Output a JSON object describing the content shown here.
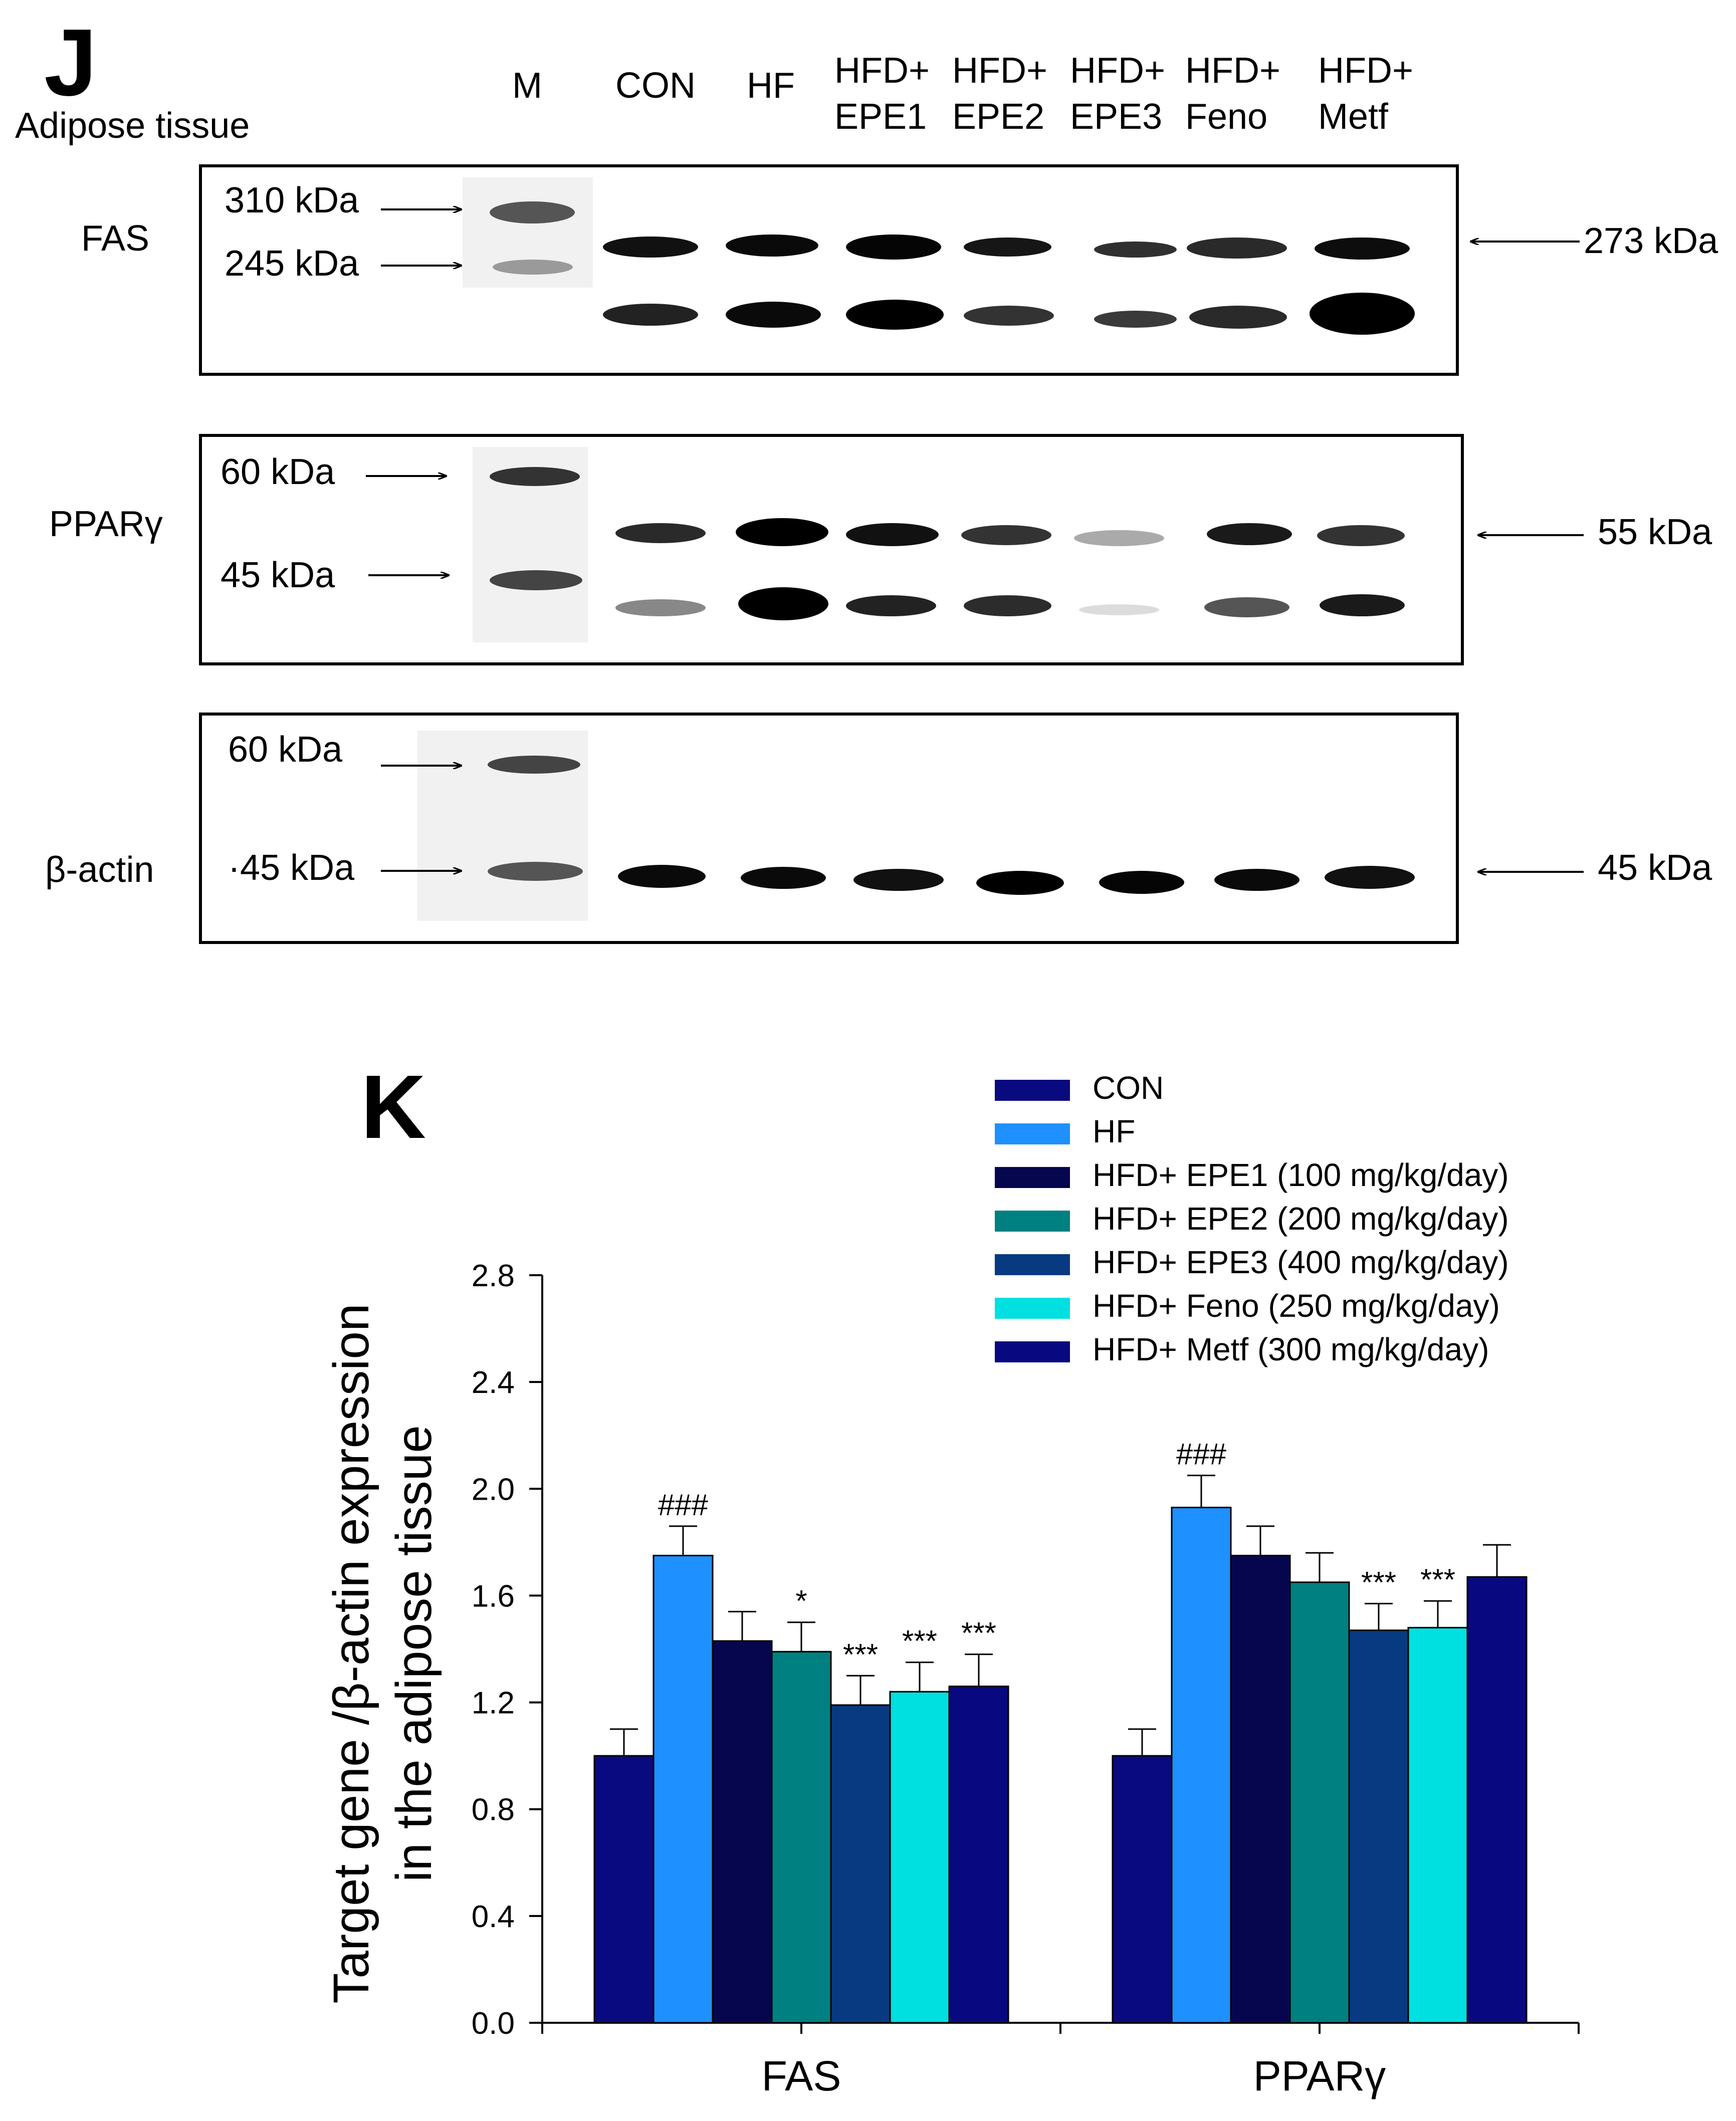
{
  "panel_j": {
    "letter": "J",
    "tissue": "Adipose tissue",
    "lanes": [
      "M",
      "CON",
      "HF",
      "HFD+\nEPE1",
      "HFD+\nEPE2",
      "HFD+\nEPE3",
      "HFD+\nFeno",
      "HFD+\nMetf"
    ],
    "blots": [
      {
        "name": "FAS",
        "markers": [
          "310 kDa",
          "245 kDa"
        ],
        "right_marker": "273 kDa"
      },
      {
        "name": "PPARγ",
        "markers": [
          "60 kDa",
          "45 kDa"
        ],
        "right_marker": "55 kDa"
      },
      {
        "name": "β-actin",
        "markers": [
          "60 kDa",
          "·45 kDa"
        ],
        "right_marker": "45 kDa"
      }
    ]
  },
  "panel_k": {
    "letter": "K"
  },
  "chart_data": {
    "type": "bar",
    "categories": [
      "FAS",
      "PPARγ"
    ],
    "ylabel_line1": "Target gene /β-actin expression",
    "ylabel_line2": "in the adipose tissue",
    "ylim": [
      0,
      2.8
    ],
    "yticks": [
      "0.0",
      "0.4",
      "0.8",
      "1.2",
      "1.6",
      "2.0",
      "2.4",
      "2.8"
    ],
    "series": [
      {
        "name": "CON",
        "color": "#0a0a80",
        "values": [
          1.0,
          1.0
        ],
        "errors": [
          0.1,
          0.1
        ],
        "annotations": [
          "",
          ""
        ]
      },
      {
        "name": "HF",
        "color": "#1e90ff",
        "values": [
          1.75,
          1.93
        ],
        "errors": [
          0.11,
          0.12
        ],
        "annotations": [
          "###",
          "###"
        ]
      },
      {
        "name": "HFD+ EPE1 (100 mg/kg/day)",
        "color": "#06064f",
        "values": [
          1.43,
          1.75
        ],
        "errors": [
          0.11,
          0.11
        ],
        "annotations": [
          "",
          ""
        ]
      },
      {
        "name": "HFD+ EPE2 (200 mg/kg/day)",
        "color": "#008080",
        "values": [
          1.39,
          1.65
        ],
        "errors": [
          0.11,
          0.11
        ],
        "annotations": [
          "*",
          ""
        ]
      },
      {
        "name": "HFD+ EPE3 (400 mg/kg/day)",
        "color": "#073a80",
        "values": [
          1.19,
          1.47
        ],
        "errors": [
          0.11,
          0.1
        ],
        "annotations": [
          "***",
          "***"
        ]
      },
      {
        "name": "HFD+ Feno (250 mg/kg/day)",
        "color": "#00e0e0",
        "values": [
          1.24,
          1.48
        ],
        "errors": [
          0.11,
          0.1
        ],
        "annotations": [
          "***",
          "***"
        ]
      },
      {
        "name": "HFD+ Metf (300 mg/kg/day)",
        "color": "#080880",
        "values": [
          1.26,
          1.67
        ],
        "errors": [
          0.12,
          0.12
        ],
        "annotations": [
          "***",
          ""
        ]
      }
    ],
    "legend_position": "top-right",
    "grid": false
  }
}
